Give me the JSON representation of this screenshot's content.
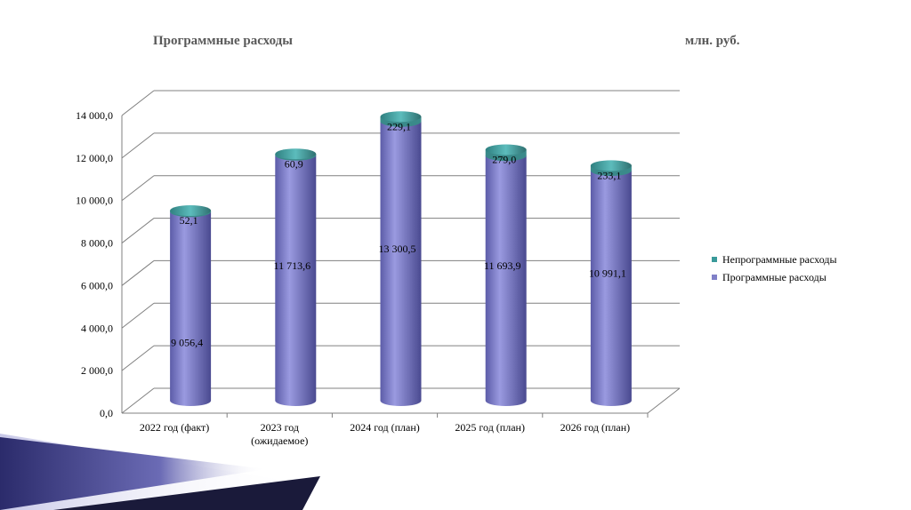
{
  "chart_data": {
    "type": "bar",
    "stacked": true,
    "title": "Программные расходы",
    "unit": "млн. руб.",
    "categories": [
      "2022 год (факт)",
      "2023 год (ожидаемое)",
      "2024 год (план)",
      "2025 год (план)",
      "2026 год (план)"
    ],
    "category_lines": [
      [
        "2022 год (факт)"
      ],
      [
        "2023 год",
        "(ожидаемое)"
      ],
      [
        "2024 год (план)"
      ],
      [
        "2025 год (план)"
      ],
      [
        "2026 год (план)"
      ]
    ],
    "series": [
      {
        "name": "Программные расходы",
        "values": [
          9056.4,
          11713.6,
          13300.5,
          11693.9,
          10991.1
        ],
        "labels": [
          "9 056,4",
          "11 713,6",
          "13 300,5",
          "11 693,9",
          "10 991,1"
        ],
        "color": "#8080c8"
      },
      {
        "name": "Непрограммные расходы",
        "values": [
          52.1,
          60.9,
          229.1,
          279.0,
          233.1
        ],
        "labels": [
          "52,1",
          "60,9",
          "229,1",
          "279,0",
          "233,1"
        ],
        "color": "#3a9a9a"
      }
    ],
    "ylim": [
      0,
      14000
    ],
    "yticks": [
      "0,0",
      "2 000,0",
      "4 000,0",
      "6 000,0",
      "8 000,0",
      "10 000,0",
      "12 000,0",
      "14 000,0"
    ],
    "grid": true,
    "legend": "right"
  }
}
